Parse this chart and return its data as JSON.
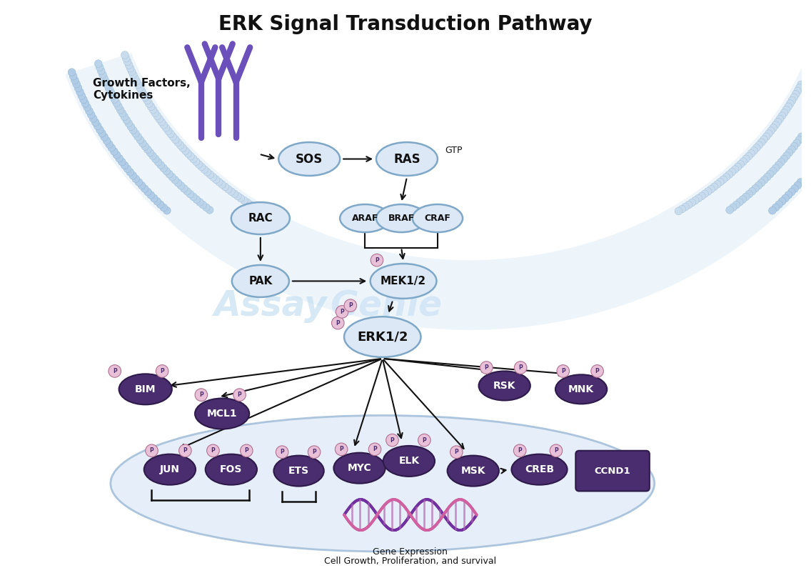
{
  "title": "ERK Signal Transduction Pathway",
  "title_fontsize": 20,
  "title_fontweight": "bold",
  "bg_color": "#ffffff",
  "node_light_color": "#dce8f5",
  "node_light_border": "#7fa8c8",
  "node_dark_color": "#4a2d6e",
  "node_dark_border": "#2e1a4a",
  "phospho_color": "#e8c0d8",
  "phospho_border": "#b07090",
  "arrow_color": "#111111",
  "receptor_color": "#6b4fbb",
  "text_dark": "#111111",
  "text_light": "#ffffff",
  "nucleus_fill": "#e2ecf8",
  "nucleus_border": "#a0bcd8",
  "membrane_dot_color": "#b8d0e8",
  "membrane_dot_border": "#90b0cc",
  "watermark_assay": "#b8d8f0",
  "watermark_genie": "#b8d8f0",
  "growth_factor_text": "Growth Factors,\nCytokines",
  "gtp_text": "GTP",
  "gene_expression_line1": "Gene Expression",
  "gene_expression_line2": "Cell Growth, Proliferation, and survival",
  "dna_color1": "#d060a0",
  "dna_color2": "#7030a0",
  "erk_node": "ERK1/2",
  "mek_node": "MEK1/2"
}
